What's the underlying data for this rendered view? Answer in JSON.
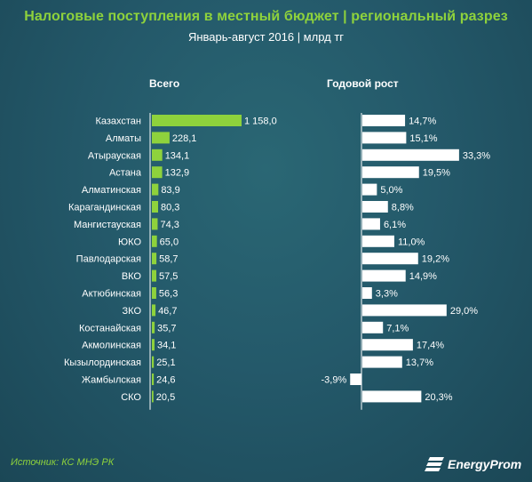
{
  "header": {
    "title": "Налоговые поступления в местный бюджет |  региональный разрез",
    "subtitle": "Январь-август 2016 | млрд тг"
  },
  "columns": {
    "total": "Всего",
    "growth": "Годовой рост"
  },
  "footer": {
    "source": "Источник: КС МНЭ РК",
    "logo_text": "EnergyProm"
  },
  "colors": {
    "bar_total": "#8ed23c",
    "bar_growth": "#ffffff",
    "title": "#8ed23c",
    "background": "#24596a"
  },
  "chart_data": [
    {
      "type": "bar",
      "orientation": "horizontal",
      "series_label": "Всего",
      "categories": [
        "Казахстан",
        "Алматы",
        "Атырауская",
        "Астана",
        "Алматинская",
        "Карагандинская",
        "Мангистауская",
        "ЮКО",
        "Павлодарская",
        "ВКО",
        "Актюбинская",
        "ЗКО",
        "Костанайская",
        "Акмолинская",
        "Кызылординская",
        "Жамбылская",
        "СКО"
      ],
      "values": [
        1158.0,
        228.1,
        134.1,
        132.9,
        83.9,
        80.3,
        74.3,
        65.0,
        58.7,
        57.5,
        56.3,
        46.7,
        35.7,
        34.1,
        25.1,
        24.6,
        20.5
      ],
      "labels": [
        "1 158,0",
        "228,1",
        "134,1",
        "132,9",
        "83,9",
        "80,3",
        "74,3",
        "65,0",
        "58,7",
        "57,5",
        "56,3",
        "46,7",
        "35,7",
        "34,1",
        "25,1",
        "24,6",
        "20,5"
      ]
    },
    {
      "type": "bar",
      "orientation": "horizontal",
      "series_label": "Годовой рост",
      "categories": [
        "Казахстан",
        "Алматы",
        "Атырауская",
        "Астана",
        "Алматинская",
        "Карагандинская",
        "Мангистауская",
        "ЮКО",
        "Павлодарская",
        "ВКО",
        "Актюбинская",
        "ЗКО",
        "Костанайская",
        "Акмолинская",
        "Кызылординская",
        "Жамбылская",
        "СКО"
      ],
      "values": [
        14.7,
        15.1,
        33.3,
        19.5,
        5.0,
        8.8,
        6.1,
        11.0,
        19.2,
        14.9,
        3.3,
        29.0,
        7.1,
        17.4,
        13.7,
        -3.9,
        20.3
      ],
      "labels": [
        "14,7%",
        "15,1%",
        "33,3%",
        "19,5%",
        "5,0%",
        "8,8%",
        "6,1%",
        "11,0%",
        "19,2%",
        "14,9%",
        "3,3%",
        "29,0%",
        "7,1%",
        "17,4%",
        "13,7%",
        "-3,9%",
        "20,3%"
      ]
    }
  ]
}
